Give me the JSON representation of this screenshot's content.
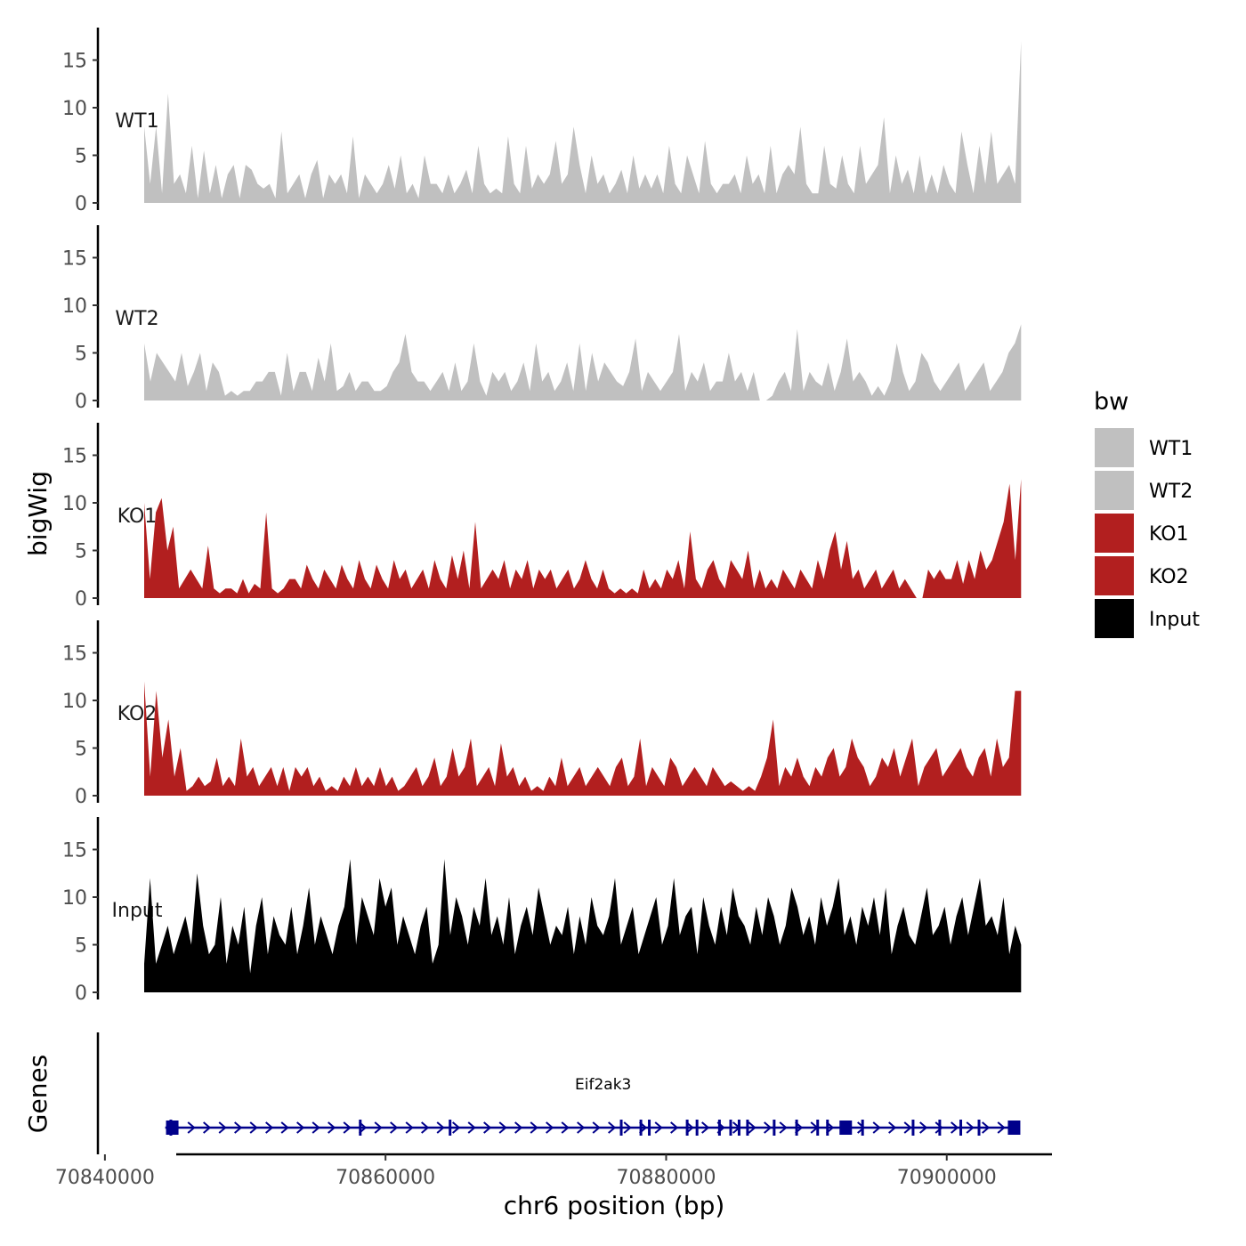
{
  "chart_data": {
    "type": "area",
    "ylabel": "bigWig",
    "xlabel": "chr6 position (bp)",
    "genes_label": "Genes",
    "ylim": [
      0,
      18
    ],
    "y_ticks": [
      "0",
      "5",
      "10",
      "15"
    ],
    "y_tick_values": [
      0,
      5,
      10,
      15
    ],
    "x_range": [
      70839500,
      70907500
    ],
    "x_ticks": [
      "70840000",
      "70860000",
      "70880000",
      "70900000"
    ],
    "x_tick_values": [
      70840000,
      70860000,
      70880000,
      70900000
    ],
    "data_range": [
      70842800,
      70905300
    ],
    "legend": {
      "title": "bw",
      "position": "right",
      "entries": [
        {
          "label": "WT1",
          "color": "#c0c0c0"
        },
        {
          "label": "WT2",
          "color": "#c0c0c0"
        },
        {
          "label": "KO1",
          "color": "#b21f1f"
        },
        {
          "label": "KO2",
          "color": "#b21f1f"
        },
        {
          "label": "Input",
          "color": "#000000"
        }
      ]
    },
    "series": [
      {
        "name": "WT1",
        "color": "#c0c0c0",
        "values": [
          8,
          2,
          8,
          1,
          11.5,
          2,
          3,
          1,
          6,
          0.5,
          5.5,
          1,
          4,
          0.5,
          3,
          4,
          0.5,
          4,
          3.5,
          2,
          1.5,
          2,
          0.5,
          7.5,
          1,
          2,
          3,
          0.5,
          3,
          4.5,
          0.5,
          3,
          2,
          3,
          1,
          7,
          0.5,
          3,
          2,
          1,
          2,
          4,
          1.5,
          5,
          1,
          2,
          0.5,
          5,
          2,
          2,
          1,
          3,
          1,
          2,
          3.5,
          1,
          6,
          2,
          1,
          1.5,
          1,
          7,
          2,
          1,
          6,
          1.5,
          3,
          2,
          3,
          6.5,
          2,
          3,
          8,
          4,
          1,
          5,
          2,
          3,
          1,
          2,
          3.5,
          1,
          5,
          1.5,
          3,
          1.5,
          3,
          1,
          6,
          2,
          1,
          5,
          3,
          1,
          6.5,
          2,
          1,
          2,
          2,
          3,
          1,
          5,
          2,
          3,
          1,
          6,
          1,
          3,
          4,
          3,
          8,
          2,
          1,
          1,
          6,
          2,
          1.5,
          5,
          2,
          1,
          6,
          2,
          3,
          4,
          9,
          1,
          5,
          2,
          3.5,
          1,
          5,
          1,
          3,
          1,
          4,
          2,
          1,
          7.5,
          4,
          1,
          6,
          2,
          7.5,
          2,
          3,
          4,
          2,
          17
        ]
      },
      {
        "name": "WT2",
        "color": "#c0c0c0",
        "values": [
          6,
          2,
          5,
          4,
          3,
          2,
          5,
          1.5,
          3,
          5,
          1,
          4,
          3,
          0.5,
          1,
          0.5,
          1,
          1,
          2,
          2,
          3,
          3,
          0.5,
          5,
          1,
          3,
          3,
          1,
          4.5,
          2,
          6,
          1,
          1.5,
          3,
          1,
          2,
          2,
          1,
          1,
          1.5,
          3,
          4,
          7,
          3,
          2,
          2,
          1,
          2,
          3,
          1,
          4,
          1,
          2,
          6,
          2,
          0.5,
          3,
          2,
          3,
          1,
          2,
          4,
          1,
          6,
          2,
          3,
          1,
          2,
          4,
          1,
          6,
          1,
          5,
          2,
          4,
          3,
          2,
          1.5,
          3,
          6.5,
          1,
          3,
          2,
          1,
          2,
          3,
          7,
          1,
          3,
          2,
          4,
          1,
          2,
          2,
          5,
          2,
          3,
          1,
          3,
          0,
          0,
          0.5,
          2,
          3,
          1,
          7.5,
          1,
          3,
          2,
          1.5,
          4,
          1,
          3,
          6.5,
          2,
          3,
          2,
          0.5,
          1.5,
          0.5,
          2,
          6,
          3,
          1,
          2,
          5,
          4,
          2,
          1,
          2,
          3,
          4,
          1,
          2,
          3,
          4,
          1,
          2,
          3,
          5,
          6,
          8
        ]
      },
      {
        "name": "KO1",
        "color": "#b21f1f",
        "values": [
          10,
          2,
          9,
          10.5,
          5,
          7.5,
          1,
          2,
          3,
          2,
          1,
          5.5,
          1,
          0.5,
          1,
          1,
          0.5,
          2,
          0.5,
          1.5,
          1,
          9,
          1,
          0.5,
          1,
          2,
          2,
          1,
          3.5,
          2,
          1,
          3,
          2,
          1,
          3.5,
          2,
          1,
          4,
          2,
          1,
          3.5,
          2,
          1,
          4,
          2,
          3,
          1,
          2,
          3,
          1,
          4,
          2,
          1,
          4.5,
          2,
          5,
          1,
          8,
          1,
          2,
          3,
          2,
          4,
          1,
          3,
          2,
          4,
          1,
          3,
          2,
          3,
          1,
          2,
          3,
          1,
          2,
          4,
          2,
          1,
          3,
          1,
          0.5,
          1,
          0.5,
          1,
          0.5,
          3,
          1,
          2,
          1,
          3,
          2,
          4,
          1,
          7,
          2,
          1,
          3,
          4,
          2,
          1,
          4,
          3,
          2,
          5,
          1,
          3,
          1,
          2,
          1,
          3,
          2,
          1,
          3,
          2,
          1,
          4,
          2,
          5,
          7,
          3,
          6,
          2,
          3,
          1,
          2,
          3,
          1,
          2,
          3,
          1,
          2,
          1,
          0,
          0,
          3,
          2,
          3,
          2,
          2,
          4,
          1.5,
          4,
          2,
          5,
          3,
          4,
          6,
          8,
          12,
          4,
          12.5
        ]
      },
      {
        "name": "KO2",
        "color": "#b21f1f",
        "values": [
          12,
          2,
          11,
          4,
          8,
          2,
          5,
          0.5,
          1,
          2,
          1,
          1.5,
          4,
          1,
          2,
          1,
          6,
          2,
          3,
          1,
          2,
          3,
          1,
          3,
          0.5,
          3,
          2,
          3,
          1,
          2,
          0.5,
          1,
          0.5,
          2,
          1,
          3,
          1,
          2,
          1,
          3,
          1,
          2,
          0.5,
          1,
          2,
          3,
          1,
          2,
          4,
          1,
          2,
          5,
          2,
          3,
          6,
          1,
          2,
          3,
          1,
          5.5,
          2,
          3,
          1,
          2,
          0.5,
          1,
          0.5,
          2,
          1,
          4,
          1,
          2,
          3,
          1,
          2,
          3,
          2,
          1,
          3,
          4,
          1,
          2,
          6,
          1,
          3,
          2,
          1,
          4,
          3,
          1,
          2,
          3,
          2,
          1,
          3,
          2,
          1,
          1.5,
          1,
          0.5,
          1,
          0.5,
          2,
          4,
          8,
          1,
          3,
          2,
          4,
          2,
          1,
          3,
          2,
          4,
          5,
          2,
          3,
          6,
          4,
          3,
          1,
          2,
          4,
          3,
          5,
          2,
          4,
          6,
          1,
          3,
          4,
          5,
          2,
          3,
          4,
          5,
          3,
          2,
          4,
          5,
          2,
          6,
          3,
          4,
          11,
          11
        ]
      },
      {
        "name": "Input",
        "color": "#000000",
        "values": [
          3,
          12,
          3,
          5,
          7,
          4,
          6,
          8,
          5,
          12.5,
          7,
          4,
          5,
          10,
          3,
          7,
          5,
          9,
          2,
          7,
          10,
          4,
          8,
          6,
          5,
          9,
          4,
          7,
          11,
          5,
          8,
          6,
          4,
          7,
          9,
          14,
          5,
          10,
          8,
          6,
          12,
          9,
          11,
          5,
          8,
          6,
          4,
          7,
          9,
          3,
          5,
          14,
          6,
          10,
          8,
          5,
          9,
          7,
          12,
          6,
          8,
          5,
          10,
          4,
          7,
          9,
          6,
          11,
          8,
          5,
          7,
          6,
          9,
          4,
          8,
          5,
          10,
          7,
          6,
          8,
          12,
          5,
          7,
          9,
          4,
          6,
          8,
          10,
          5,
          7,
          12,
          6,
          8,
          9,
          4,
          10,
          7,
          5,
          9,
          6,
          11,
          8,
          7,
          5,
          9,
          6,
          10,
          8,
          5,
          7,
          11,
          9,
          6,
          8,
          5,
          10,
          7,
          9,
          12,
          6,
          8,
          5,
          9,
          7,
          10,
          6,
          11,
          4,
          7,
          9,
          6,
          5,
          8,
          11,
          6,
          7,
          9,
          5,
          8,
          10,
          6,
          9,
          12,
          7,
          8,
          6,
          10,
          4,
          7,
          5
        ]
      }
    ],
    "gene": {
      "name": "Eif2ak3",
      "start": 70844300,
      "end": 70905200,
      "strand": "+",
      "color": "#00008b",
      "exons": [
        70844700,
        70858200,
        70864600,
        70876800,
        70878200,
        70878800,
        70881500,
        70882200,
        70883800,
        70884600,
        70885200,
        70885800,
        70887700,
        70889300,
        70890800,
        70891500,
        70894000,
        70897600,
        70899500,
        70901000,
        70902300
      ],
      "big_exons": [
        70844800,
        70892800,
        70904800
      ]
    }
  }
}
